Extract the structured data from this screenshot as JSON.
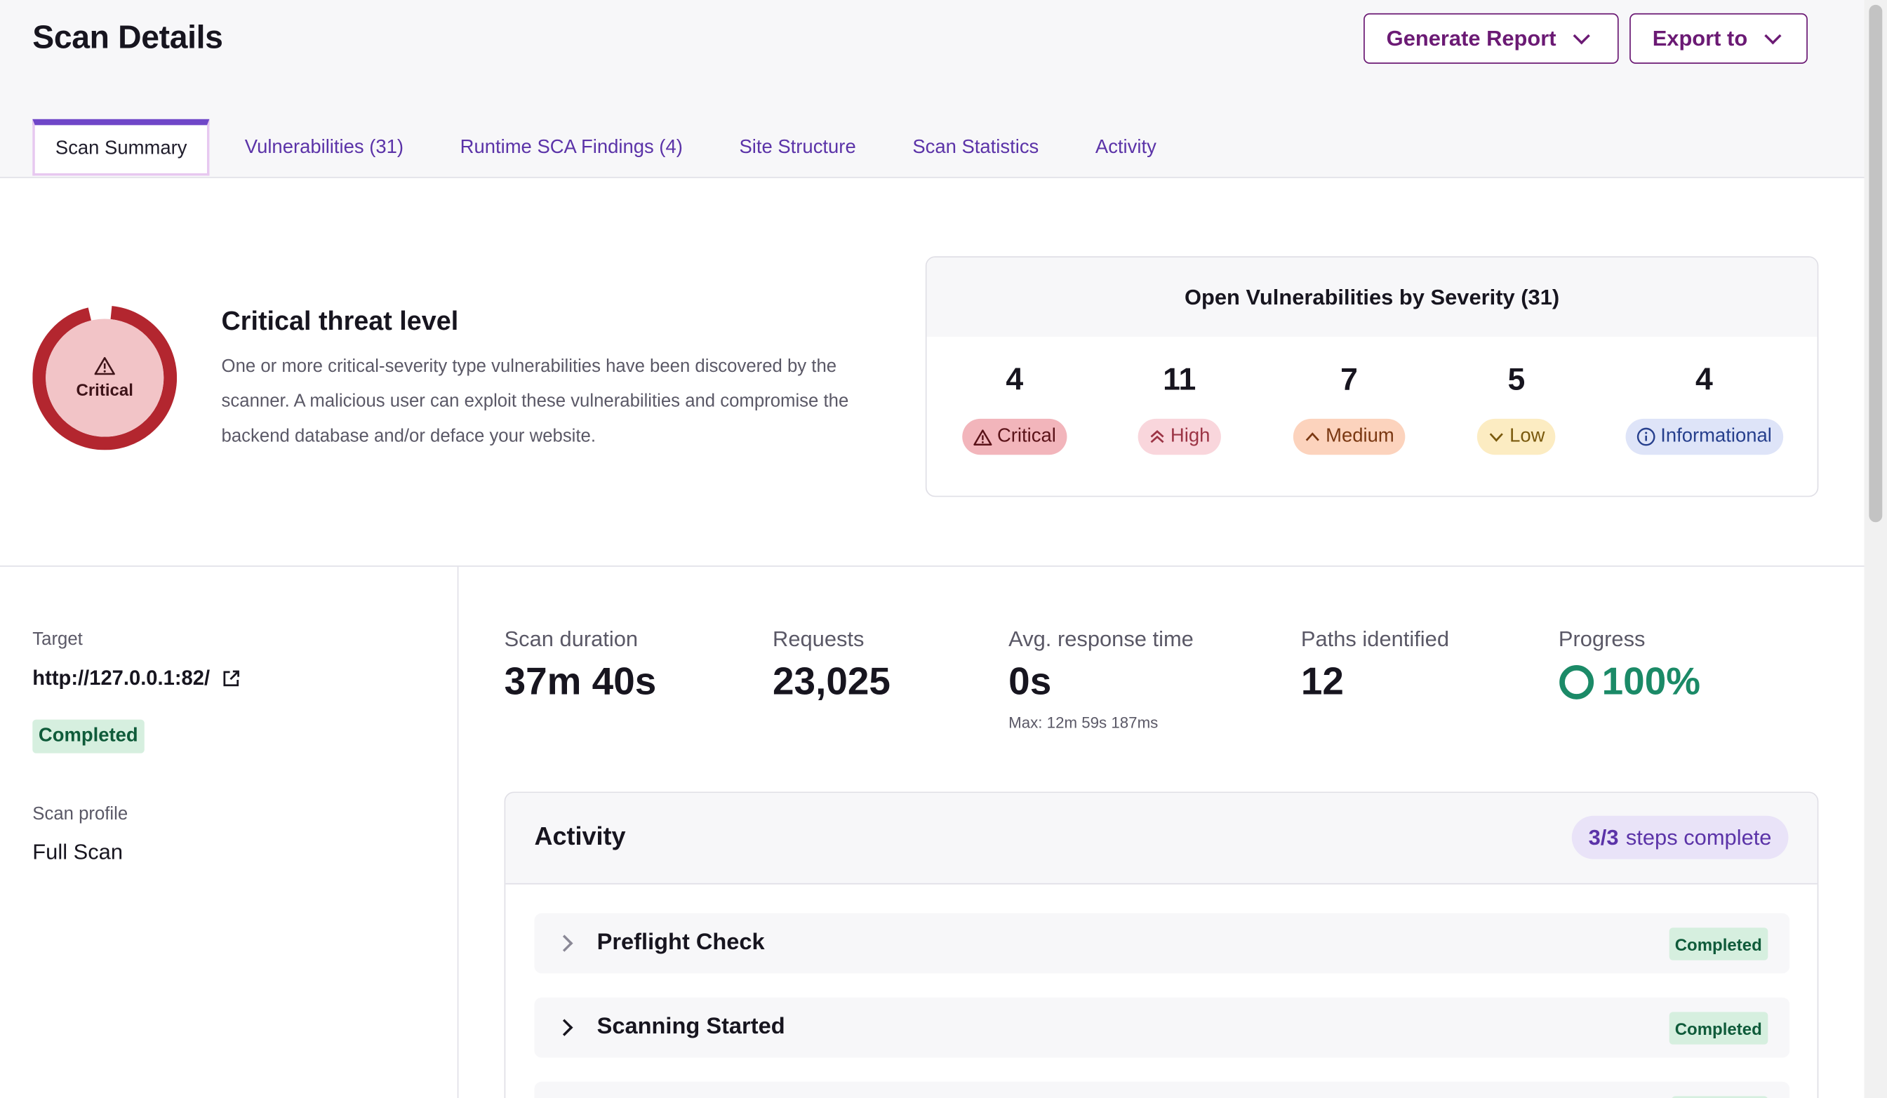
{
  "page": {
    "title": "Scan Details"
  },
  "actions": {
    "generate_report": "Generate Report",
    "export_to": "Export to"
  },
  "tabs": [
    {
      "label": "Scan Summary",
      "active": true
    },
    {
      "label": "Vulnerabilities (31)"
    },
    {
      "label": "Runtime SCA Findings (4)"
    },
    {
      "label": "Site Structure"
    },
    {
      "label": "Scan Statistics"
    },
    {
      "label": "Activity"
    }
  ],
  "threat": {
    "level_label": "Critical",
    "title": "Critical threat level",
    "description": "One or more critical-severity type vulnerabilities have been discovered by the scanner. A malicious user can exploit these vulnerabilities and compromise the backend database and/or deface your website.",
    "ring_color": "#b3262f"
  },
  "severity": {
    "title": "Open Vulnerabilities by Severity (31)",
    "items": [
      {
        "count": "4",
        "label": "Critical",
        "icon": "warning-triangle-icon"
      },
      {
        "count": "11",
        "label": "High",
        "icon": "double-chevron-up-icon"
      },
      {
        "count": "7",
        "label": "Medium",
        "icon": "chevron-up-icon"
      },
      {
        "count": "5",
        "label": "Low",
        "icon": "chevron-down-icon"
      },
      {
        "count": "4",
        "label": "Informational",
        "icon": "info-icon"
      }
    ]
  },
  "target": {
    "label": "Target",
    "url": "http://127.0.0.1:82/",
    "status": "Completed",
    "profile_label": "Scan profile",
    "profile": "Full Scan"
  },
  "stats": {
    "duration": {
      "label": "Scan duration",
      "value": "37m 40s"
    },
    "requests": {
      "label": "Requests",
      "value": "23,025"
    },
    "avg_response": {
      "label": "Avg. response time",
      "value": "0s",
      "sub": "Max: 12m 59s 187ms"
    },
    "paths": {
      "label": "Paths identified",
      "value": "12"
    },
    "progress": {
      "label": "Progress",
      "value": "100%",
      "percent": 100,
      "color": "#1b8a67"
    }
  },
  "activity": {
    "title": "Activity",
    "steps_done": "3/3",
    "steps_text": "steps complete",
    "rows": [
      {
        "title": "Preflight Check",
        "status": "Completed"
      },
      {
        "title": "Scanning Started",
        "status": "Completed"
      },
      {
        "title": "",
        "status": ""
      }
    ]
  }
}
